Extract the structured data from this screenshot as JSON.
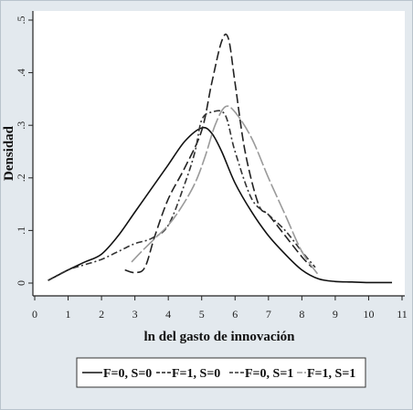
{
  "chart_data": {
    "type": "line",
    "title": "",
    "xlabel": "ln del gasto de innovación",
    "ylabel": "Densidad",
    "xlim": [
      0,
      11
    ],
    "ylim": [
      0,
      0.5
    ],
    "x_ticks": [
      "0",
      "1",
      "2",
      "3",
      "4",
      "5",
      "6",
      "7",
      "8",
      "9",
      "10",
      "11"
    ],
    "y_ticks": [
      "0",
      ".1",
      ".2",
      ".3",
      ".4",
      ".5"
    ],
    "grid": false,
    "legend_position": "bottom",
    "series": [
      {
        "name": "F=0, S=0",
        "style": "solid",
        "color": "#111111",
        "x": [
          0.4,
          1.0,
          1.5,
          2.0,
          2.5,
          3.0,
          3.5,
          4.0,
          4.5,
          5.0,
          5.3,
          5.6,
          6.0,
          6.5,
          7.0,
          7.5,
          8.0,
          8.5,
          9.0,
          9.5,
          10.0,
          10.7
        ],
        "y": [
          0.005,
          0.025,
          0.04,
          0.055,
          0.09,
          0.135,
          0.18,
          0.225,
          0.27,
          0.295,
          0.285,
          0.25,
          0.19,
          0.135,
          0.09,
          0.055,
          0.025,
          0.008,
          0.003,
          0.002,
          0.001,
          0.001
        ]
      },
      {
        "name": "F=1, S=0",
        "style": "dash",
        "color": "#222222",
        "x": [
          2.7,
          3.0,
          3.3,
          3.6,
          4.0,
          4.5,
          5.0,
          5.3,
          5.6,
          5.8,
          6.0,
          6.3,
          6.7,
          7.0,
          7.5,
          8.0,
          8.3
        ],
        "y": [
          0.025,
          0.02,
          0.03,
          0.09,
          0.16,
          0.22,
          0.29,
          0.38,
          0.46,
          0.465,
          0.38,
          0.25,
          0.15,
          0.13,
          0.09,
          0.05,
          0.03
        ]
      },
      {
        "name": "F=0, S=1",
        "style": "dashdot",
        "color": "#333333",
        "x": [
          0.4,
          1.0,
          1.5,
          2.0,
          2.5,
          3.0,
          3.5,
          4.0,
          4.5,
          4.8,
          5.0,
          5.3,
          5.7,
          6.0,
          6.5,
          7.0,
          7.5,
          8.0,
          8.4
        ],
        "y": [
          0.005,
          0.025,
          0.035,
          0.045,
          0.06,
          0.075,
          0.085,
          0.11,
          0.19,
          0.25,
          0.31,
          0.325,
          0.32,
          0.25,
          0.16,
          0.13,
          0.1,
          0.06,
          0.03
        ]
      },
      {
        "name": "F=1, S=1",
        "style": "longdash",
        "color": "#9a9a9a",
        "x": [
          2.9,
          3.2,
          3.6,
          4.0,
          4.4,
          4.8,
          5.1,
          5.4,
          5.7,
          6.0,
          6.5,
          7.0,
          7.5,
          8.0,
          8.5
        ],
        "y": [
          0.04,
          0.06,
          0.085,
          0.11,
          0.145,
          0.19,
          0.24,
          0.3,
          0.335,
          0.325,
          0.275,
          0.2,
          0.13,
          0.06,
          0.015
        ]
      }
    ]
  }
}
